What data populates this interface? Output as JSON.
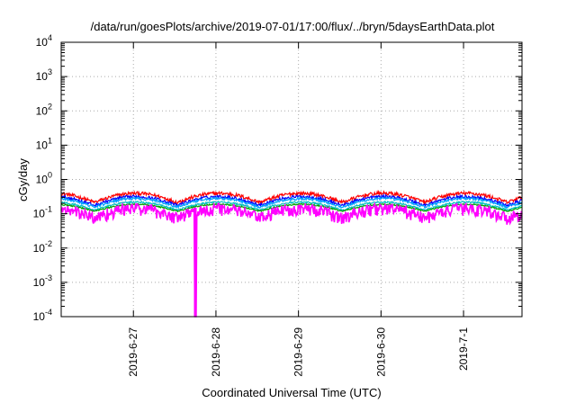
{
  "chart_data": {
    "type": "line",
    "title": "/data/run/goesPlots/archive/2019-07-01/17:00/flux/../bryn/5daysEarthData.plot",
    "xlabel": "Coordinated Universal Time (UTC)",
    "ylabel": "cGy/day",
    "yscale": "log",
    "ylim": [
      0.0001,
      10000
    ],
    "xlim": [
      "2019-06-26T03:00",
      "2019-07-01T17:00"
    ],
    "x_ticks": [
      {
        "t": "2019-06-27T00:00",
        "label": "2019-6-27"
      },
      {
        "t": "2019-06-28T00:00",
        "label": "2019-6-28"
      },
      {
        "t": "2019-06-29T00:00",
        "label": "2019-6-29"
      },
      {
        "t": "2019-06-30T00:00",
        "label": "2019-6-30"
      },
      {
        "t": "2019-07-01T00:00",
        "label": "2019-7-1"
      }
    ],
    "y_ticks": [
      {
        "v": 0.0001,
        "exp": "-4"
      },
      {
        "v": 0.001,
        "exp": "-3"
      },
      {
        "v": 0.01,
        "exp": "-2"
      },
      {
        "v": 0.1,
        "exp": "-1"
      },
      {
        "v": 1,
        "exp": "0"
      },
      {
        "v": 10,
        "exp": "1"
      },
      {
        "v": 100,
        "exp": "2"
      },
      {
        "v": 1000,
        "exp": "3"
      },
      {
        "v": 10000,
        "exp": "4"
      }
    ],
    "y_tick_base": "10",
    "grid": true,
    "legend": "none",
    "series": [
      {
        "color": "#ff0000",
        "level_day": 0.4,
        "level_night": 0.22,
        "spread": 0.17
      },
      {
        "color": "#0000ff",
        "level_day": 0.32,
        "level_night": 0.18,
        "spread": 0.14
      },
      {
        "color": "#00a0ff",
        "level_day": 0.28,
        "level_night": 0.16,
        "spread": 0.12
      },
      {
        "color": "#00c0c0",
        "level_day": 0.22,
        "level_night": 0.13,
        "spread": 0.08
      },
      {
        "color": "#00a000",
        "level_day": 0.19,
        "level_night": 0.12,
        "spread": 0.06
      },
      {
        "color": "#ff00ff",
        "level_day": 0.15,
        "level_night": 0.08,
        "spread": 0.35
      }
    ],
    "dropout": {
      "t": "2019-06-27T18:00",
      "value": 0.0001
    }
  }
}
